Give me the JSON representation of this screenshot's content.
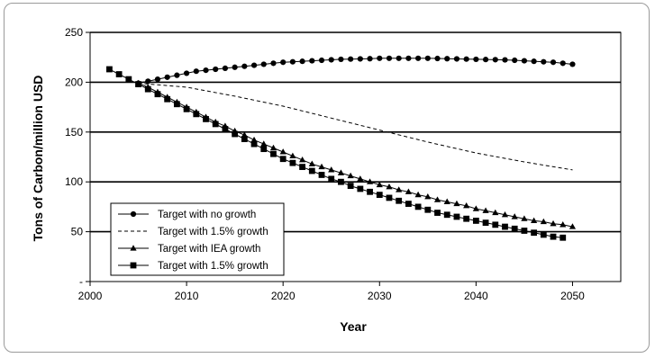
{
  "chart_data": {
    "type": "line",
    "xlabel": "Year",
    "ylabel": "Tons of Carbon/million USD",
    "xlim": [
      2000,
      2055
    ],
    "ylim": [
      0,
      250
    ],
    "x_ticks": [
      "2000",
      "2010",
      "2020",
      "2030",
      "2040",
      "2050"
    ],
    "y_ticks": [
      "-",
      "50",
      "100",
      "150",
      "200",
      "250"
    ],
    "grid": "horizontal",
    "legend_placement": "bottom-left",
    "series": [
      {
        "name": "Target with no growth",
        "style": "line-circle",
        "x": [
          2005,
          2006,
          2007,
          2008,
          2009,
          2010,
          2011,
          2012,
          2013,
          2014,
          2015,
          2016,
          2017,
          2018,
          2019,
          2020,
          2021,
          2022,
          2023,
          2024,
          2025,
          2026,
          2027,
          2028,
          2029,
          2030,
          2031,
          2032,
          2033,
          2034,
          2035,
          2036,
          2037,
          2038,
          2039,
          2040,
          2041,
          2042,
          2043,
          2044,
          2045,
          2046,
          2047,
          2048,
          2049,
          2050
        ],
        "y": [
          199,
          201,
          203,
          205,
          207,
          209,
          211,
          212,
          213,
          214,
          215,
          216,
          217,
          218,
          219,
          220,
          220.5,
          221,
          221.5,
          222,
          222.5,
          223,
          223.2,
          223.4,
          223.6,
          224,
          224,
          224,
          224,
          224,
          224,
          223.8,
          223.6,
          223.4,
          223.2,
          223,
          222.8,
          222.6,
          222.4,
          222,
          221.5,
          221,
          220.5,
          220,
          219,
          218
        ]
      },
      {
        "name": "Target with 1.5% growth",
        "style": "dashed",
        "x": [
          2005,
          2010,
          2015,
          2020,
          2025,
          2030,
          2035,
          2040,
          2045,
          2050
        ],
        "y": [
          199,
          195,
          186,
          176,
          164,
          152,
          140,
          129,
          120,
          112
        ]
      },
      {
        "name": "Target with IEA growth",
        "style": "line-triangle",
        "x": [
          2005,
          2006,
          2007,
          2008,
          2009,
          2010,
          2011,
          2012,
          2013,
          2014,
          2015,
          2016,
          2017,
          2018,
          2019,
          2020,
          2021,
          2022,
          2023,
          2024,
          2025,
          2026,
          2027,
          2028,
          2029,
          2030,
          2031,
          2032,
          2033,
          2034,
          2035,
          2036,
          2037,
          2038,
          2039,
          2040,
          2041,
          2042,
          2043,
          2044,
          2045,
          2046,
          2047,
          2048,
          2049,
          2050
        ],
        "y": [
          199,
          195,
          190,
          185,
          180,
          175,
          170,
          165,
          160,
          156,
          151,
          147,
          142,
          138,
          134,
          130,
          126,
          122,
          118,
          115,
          112,
          109,
          106,
          103,
          100,
          97,
          95,
          92,
          90,
          87,
          85,
          82,
          80,
          78,
          76,
          73,
          71,
          69,
          67,
          65,
          63,
          61,
          60,
          58,
          57,
          55
        ]
      },
      {
        "name": "Target with 1.5% growth",
        "style": "line-square",
        "x": [
          2002,
          2003,
          2004,
          2005,
          2006,
          2007,
          2008,
          2009,
          2010,
          2011,
          2012,
          2013,
          2014,
          2015,
          2016,
          2017,
          2018,
          2019,
          2020,
          2021,
          2022,
          2023,
          2024,
          2025,
          2026,
          2027,
          2028,
          2029,
          2030,
          2031,
          2032,
          2033,
          2034,
          2035,
          2036,
          2037,
          2038,
          2039,
          2040,
          2041,
          2042,
          2043,
          2044,
          2045,
          2046,
          2047,
          2048,
          2049
        ],
        "y": [
          213,
          208,
          203,
          198,
          193,
          188,
          183,
          178,
          173,
          168,
          163,
          158,
          153,
          148,
          143,
          138,
          133,
          128,
          123,
          119,
          115,
          111,
          107,
          103,
          100,
          96,
          93,
          90,
          87,
          84,
          81,
          78,
          75,
          72,
          69,
          67,
          65,
          63,
          61,
          59,
          57,
          55,
          53,
          51,
          49,
          47,
          45,
          44
        ]
      }
    ]
  }
}
